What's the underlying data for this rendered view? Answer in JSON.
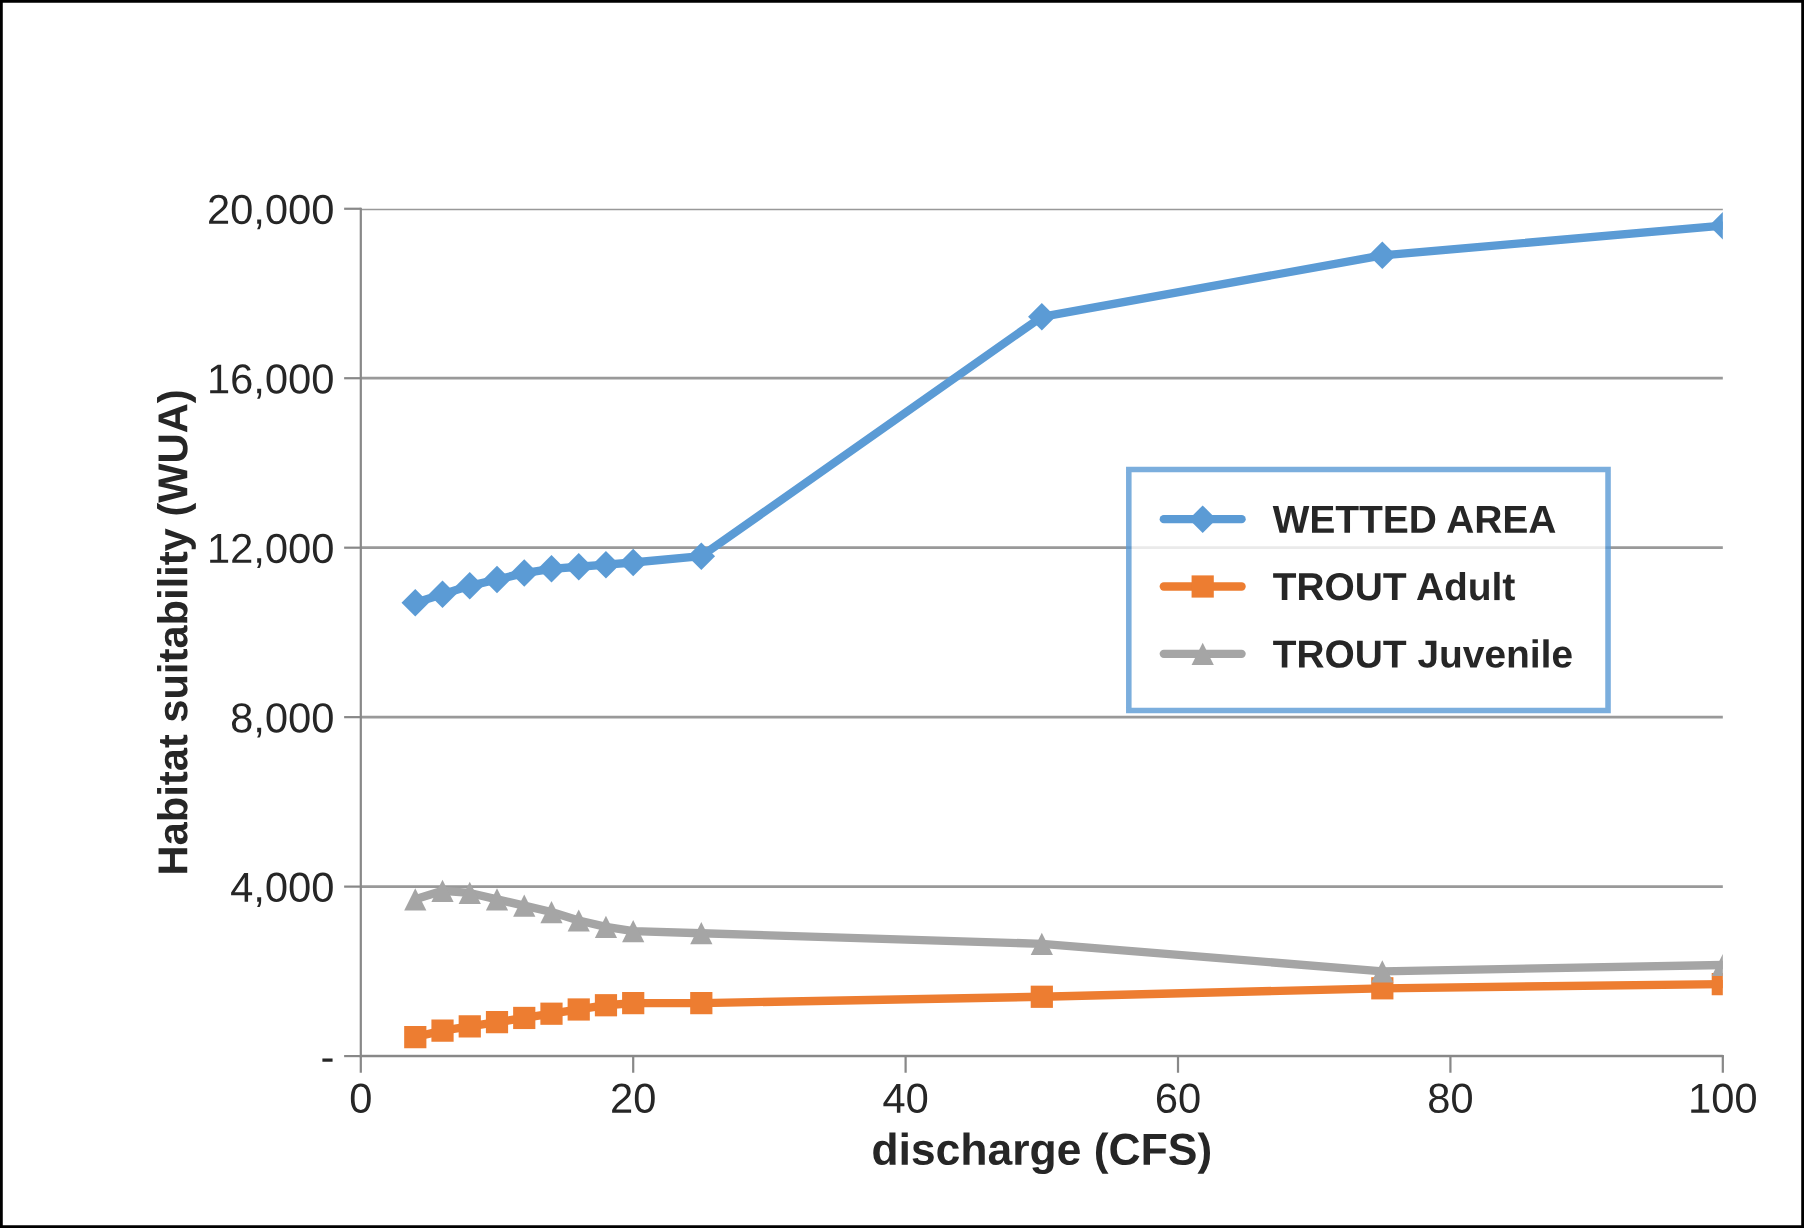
{
  "chart_data": {
    "type": "line",
    "xlabel": "discharge (CFS)",
    "ylabel": "Habitat suitability (WUA)",
    "x": [
      4,
      6,
      8,
      10,
      12,
      14,
      16,
      18,
      20,
      25,
      50,
      75,
      100
    ],
    "series": [
      {
        "name": "WETTED AREA",
        "color": "#5b9bd5",
        "marker": "diamond",
        "values": [
          10700,
          10900,
          11100,
          11250,
          11400,
          11500,
          11550,
          11600,
          11650,
          11800,
          17450,
          18900,
          19600
        ]
      },
      {
        "name": "TROUT Adult",
        "color": "#ed7d31",
        "marker": "square",
        "values": [
          450,
          600,
          700,
          800,
          900,
          1000,
          1100,
          1200,
          1250,
          1250,
          1400,
          1600,
          1700
        ]
      },
      {
        "name": "TROUT Juvenile",
        "color": "#a5a5a5",
        "marker": "triangle",
        "values": [
          3700,
          3900,
          3850,
          3700,
          3550,
          3400,
          3200,
          3050,
          2950,
          2900,
          2650,
          2000,
          2150
        ]
      }
    ],
    "xlim": [
      0,
      100
    ],
    "xticks": [
      0,
      20,
      40,
      60,
      80,
      100
    ],
    "ylim": [
      0,
      20000
    ],
    "yticks": [
      {
        "value": 0,
        "label": "-"
      },
      {
        "value": 4000,
        "label": "4,000"
      },
      {
        "value": 8000,
        "label": "8,000"
      },
      {
        "value": 12000,
        "label": "12,000"
      },
      {
        "value": 16000,
        "label": "16,000"
      },
      {
        "value": 20000,
        "label": "20,000"
      }
    ],
    "grid": "y",
    "legend": "center right"
  }
}
